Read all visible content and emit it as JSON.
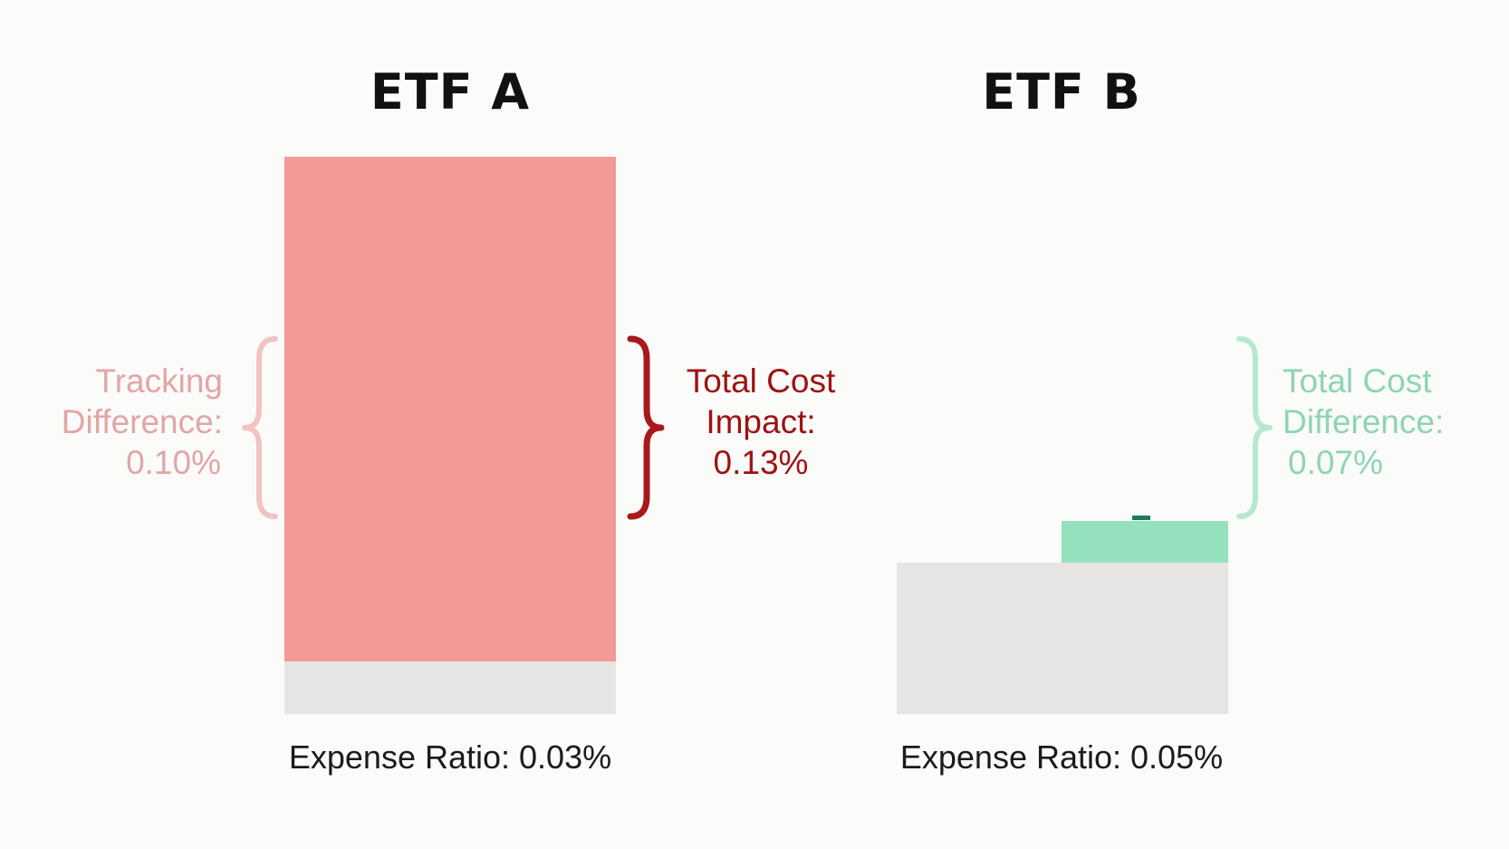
{
  "colors": {
    "background": "#fbfbf9",
    "etf_a_bar": "#f39996",
    "etf_base": "#e6e5e3",
    "etf_b_bar": "#95e0bd",
    "etf_b_tick": "#1d7a5f",
    "tracking_text": "#e2a6a7",
    "total_cost_text": "#9c1214",
    "total_cost_brace": "#a8191c",
    "difference_text": "#8fd4b4"
  },
  "etf_a": {
    "title": "ETF A",
    "expense_ratio_label": "Expense Ratio: 0.03%",
    "left_label": [
      "Tracking",
      "Difference:",
      "0.10%"
    ],
    "right_label": [
      "Total Cost",
      "Impact:",
      "0.13%"
    ]
  },
  "etf_b": {
    "title": "ETF B",
    "expense_ratio_label": "Expense Ratio: 0.05%",
    "right_label": [
      "Total Cost",
      "Difference:",
      "0.07%"
    ]
  }
}
